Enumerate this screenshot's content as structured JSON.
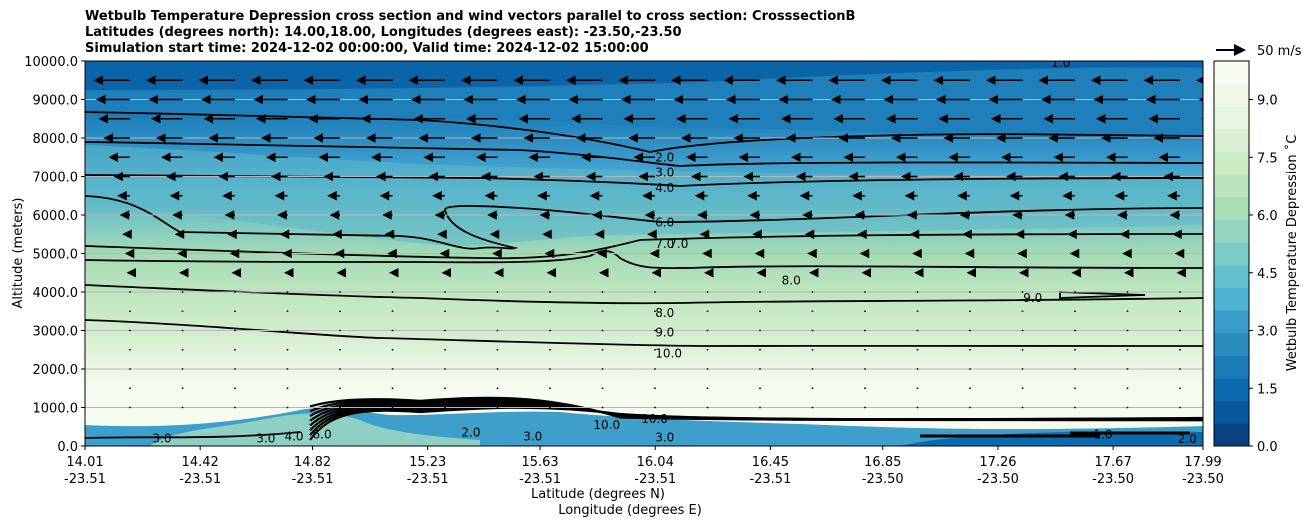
{
  "titles": [
    "Wetbulb Temperature Depression cross section and wind vectors parallel to cross section: CrosssectionB",
    "Latitudes (degrees north): 14.00,18.00, Longitudes (degrees east): -23.50,-23.50",
    "Simulation start time: 2024-12-02 00:00:00, Valid time: 2024-12-02 15:00:00"
  ],
  "quiver_key": "50 m/s",
  "chart_data": {
    "type": "heatmap",
    "ylabel": "Altitude (meters)",
    "xlabel_lat": "Latitude (degrees N)",
    "xlabel_lon": "Longitude (degrees E)",
    "ylim": [
      0,
      10000
    ],
    "y_ticks": [
      "0.0",
      "1000.0",
      "2000.0",
      "3000.0",
      "4000.0",
      "5000.0",
      "6000.0",
      "7000.0",
      "8000.0",
      "9000.0",
      "10000.0"
    ],
    "x_ticks": [
      {
        "lat": "14.01",
        "lon": "-23.51"
      },
      {
        "lat": "14.42",
        "lon": "-23.51"
      },
      {
        "lat": "14.82",
        "lon": "-23.51"
      },
      {
        "lat": "15.23",
        "lon": "-23.51"
      },
      {
        "lat": "15.63",
        "lon": "-23.51"
      },
      {
        "lat": "16.04",
        "lon": "-23.51"
      },
      {
        "lat": "16.45",
        "lon": "-23.51"
      },
      {
        "lat": "16.85",
        "lon": "-23.50"
      },
      {
        "lat": "17.26",
        "lon": "-23.50"
      },
      {
        "lat": "17.67",
        "lon": "-23.50"
      },
      {
        "lat": "17.99",
        "lon": "-23.50"
      }
    ],
    "grid_y": true,
    "colorbar": {
      "label": "Wetbulb Temperature Depression ˚C",
      "ticks": [
        "0.0",
        "1.5",
        "3.0",
        "4.5",
        "6.0",
        "7.5",
        "9.0"
      ],
      "range": [
        0,
        10
      ],
      "colormap": "GnBu_r"
    },
    "contour_labels": [
      {
        "text": "2.0",
        "x": 16.04,
        "y": 7500
      },
      {
        "text": "3.0",
        "x": 16.04,
        "y": 7100
      },
      {
        "text": "4.0",
        "x": 16.04,
        "y": 6700
      },
      {
        "text": "6.0",
        "x": 16.04,
        "y": 5800
      },
      {
        "text": "7.0",
        "x": 16.04,
        "y": 5250
      },
      {
        "text": "7.0",
        "x": 16.09,
        "y": 5250
      },
      {
        "text": "8.0",
        "x": 16.04,
        "y": 3450
      },
      {
        "text": "9.0",
        "x": 16.04,
        "y": 2950
      },
      {
        "text": "10.0",
        "x": 16.04,
        "y": 2400
      },
      {
        "text": "8.0",
        "x": 16.49,
        "y": 4300
      },
      {
        "text": "9.0",
        "x": 17.35,
        "y": 3850
      },
      {
        "text": "1.0",
        "x": 17.45,
        "y": 9950
      },
      {
        "text": "10.0",
        "x": 15.99,
        "y": 700
      },
      {
        "text": "3.0",
        "x": 16.04,
        "y": 220
      },
      {
        "text": "3.0",
        "x": 15.57,
        "y": 250
      },
      {
        "text": "2.0",
        "x": 15.35,
        "y": 350
      },
      {
        "text": "6.0",
        "x": 14.82,
        "y": 300
      },
      {
        "text": "4.0",
        "x": 14.72,
        "y": 250
      },
      {
        "text": "3.0",
        "x": 14.62,
        "y": 200
      },
      {
        "text": "3.0",
        "x": 14.25,
        "y": 200
      },
      {
        "text": "10.0",
        "x": 15.82,
        "y": 550
      },
      {
        "text": "2.0",
        "x": 17.9,
        "y": 180
      },
      {
        "text": "1.0",
        "x": 17.6,
        "y": 300
      }
    ],
    "wind_vector_rows": [
      9500,
      9000,
      8500,
      8000,
      7500,
      7000,
      6500,
      6000,
      5500,
      5000,
      4500,
      4000,
      3500,
      3000,
      2500,
      2000,
      1500,
      1000
    ],
    "wind_u_ms": [
      -28,
      -26,
      -24,
      -20,
      -16,
      -12,
      -9,
      -7,
      -5,
      -3,
      -1.5,
      -0.8,
      0.3,
      0.3,
      0.2,
      0.2,
      0.5,
      0.5
    ]
  }
}
